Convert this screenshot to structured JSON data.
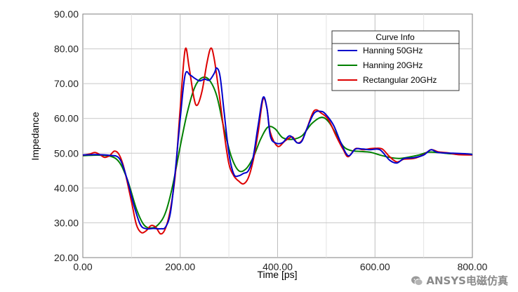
{
  "chart_data": {
    "type": "line",
    "xlabel": "Time [ps]",
    "ylabel": "Impedance",
    "xlim": [
      0,
      800
    ],
    "ylim": [
      20,
      90
    ],
    "x_ticks": [
      "0.00",
      "200.00",
      "400.00",
      "600.00",
      "800.00"
    ],
    "y_ticks": [
      "20.00",
      "30.00",
      "40.00",
      "50.00",
      "60.00",
      "70.00",
      "80.00",
      "90.00"
    ],
    "grid": true,
    "legend": {
      "title": "Curve Info",
      "placement": "top-right"
    },
    "series": [
      {
        "name": "Hanning 50GHz",
        "color": "#0000cc",
        "points": [
          [
            0,
            49.5
          ],
          [
            30,
            49.6
          ],
          [
            55,
            49.4
          ],
          [
            75,
            48.5
          ],
          [
            90,
            43
          ],
          [
            105,
            35
          ],
          [
            118,
            29.5
          ],
          [
            130,
            28.3
          ],
          [
            145,
            28.4
          ],
          [
            160,
            28.3
          ],
          [
            170,
            28.8
          ],
          [
            180,
            33
          ],
          [
            190,
            45
          ],
          [
            200,
            60
          ],
          [
            210,
            72.5
          ],
          [
            220,
            72.5
          ],
          [
            230,
            71.5
          ],
          [
            240,
            70.8
          ],
          [
            250,
            71.3
          ],
          [
            260,
            71
          ],
          [
            270,
            73
          ],
          [
            275,
            74.5
          ],
          [
            282,
            72
          ],
          [
            290,
            62
          ],
          [
            300,
            50
          ],
          [
            310,
            44
          ],
          [
            320,
            43.5
          ],
          [
            330,
            44.2
          ],
          [
            340,
            45
          ],
          [
            350,
            49
          ],
          [
            360,
            58
          ],
          [
            370,
            66
          ],
          [
            378,
            63
          ],
          [
            385,
            55
          ],
          [
            395,
            53
          ],
          [
            410,
            53
          ],
          [
            425,
            55
          ],
          [
            440,
            53
          ],
          [
            450,
            53.5
          ],
          [
            460,
            57
          ],
          [
            475,
            61.5
          ],
          [
            490,
            62
          ],
          [
            500,
            61
          ],
          [
            515,
            58
          ],
          [
            530,
            53
          ],
          [
            545,
            49.3
          ],
          [
            560,
            51.2
          ],
          [
            575,
            51.2
          ],
          [
            590,
            51
          ],
          [
            610,
            51
          ],
          [
            630,
            48
          ],
          [
            645,
            47.2
          ],
          [
            660,
            48.5
          ],
          [
            680,
            48.7
          ],
          [
            700,
            49.5
          ],
          [
            715,
            51
          ],
          [
            730,
            50.2
          ],
          [
            760,
            50
          ],
          [
            790,
            49.8
          ],
          [
            800,
            49.6
          ]
        ]
      },
      {
        "name": "Hanning 20GHz",
        "color": "#008000",
        "points": [
          [
            0,
            49.3
          ],
          [
            40,
            49.4
          ],
          [
            70,
            48.2
          ],
          [
            90,
            43
          ],
          [
            110,
            34
          ],
          [
            125,
            29.5
          ],
          [
            140,
            28.5
          ],
          [
            155,
            29.5
          ],
          [
            170,
            33
          ],
          [
            185,
            41
          ],
          [
            200,
            52
          ],
          [
            215,
            62
          ],
          [
            230,
            69
          ],
          [
            245,
            71.7
          ],
          [
            260,
            71
          ],
          [
            275,
            66.5
          ],
          [
            290,
            57
          ],
          [
            305,
            49
          ],
          [
            320,
            45
          ],
          [
            335,
            45.5
          ],
          [
            350,
            48.8
          ],
          [
            365,
            54
          ],
          [
            380,
            57.5
          ],
          [
            395,
            57
          ],
          [
            410,
            54.5
          ],
          [
            430,
            54
          ],
          [
            450,
            55
          ],
          [
            470,
            58.5
          ],
          [
            490,
            60.3
          ],
          [
            505,
            59
          ],
          [
            520,
            55.5
          ],
          [
            535,
            52
          ],
          [
            550,
            50.8
          ],
          [
            570,
            50.5
          ],
          [
            590,
            50.3
          ],
          [
            610,
            49.5
          ],
          [
            630,
            48.8
          ],
          [
            650,
            48.5
          ],
          [
            670,
            48.9
          ],
          [
            690,
            49.5
          ],
          [
            710,
            50.3
          ],
          [
            730,
            50.2
          ],
          [
            760,
            49.8
          ],
          [
            800,
            49.7
          ]
        ]
      },
      {
        "name": "Rectangular 20GHz",
        "color": "#dd0000",
        "points": [
          [
            0,
            49.4
          ],
          [
            15,
            49.8
          ],
          [
            25,
            50.2
          ],
          [
            35,
            49.6
          ],
          [
            45,
            48.8
          ],
          [
            55,
            49.3
          ],
          [
            65,
            50.6
          ],
          [
            75,
            49.5
          ],
          [
            85,
            45.5
          ],
          [
            100,
            36
          ],
          [
            110,
            29.5
          ],
          [
            120,
            27.2
          ],
          [
            130,
            27.7
          ],
          [
            140,
            29.2
          ],
          [
            150,
            28.7
          ],
          [
            160,
            26.8
          ],
          [
            170,
            28.5
          ],
          [
            180,
            34
          ],
          [
            190,
            44
          ],
          [
            200,
            63
          ],
          [
            210,
            79.7
          ],
          [
            218,
            75
          ],
          [
            228,
            66
          ],
          [
            235,
            63.8
          ],
          [
            245,
            68
          ],
          [
            255,
            76
          ],
          [
            263,
            80.2
          ],
          [
            270,
            77
          ],
          [
            280,
            67
          ],
          [
            290,
            56
          ],
          [
            300,
            47
          ],
          [
            310,
            43.5
          ],
          [
            320,
            42
          ],
          [
            330,
            41.2
          ],
          [
            340,
            43
          ],
          [
            350,
            48
          ],
          [
            360,
            56
          ],
          [
            370,
            65.5
          ],
          [
            378,
            63
          ],
          [
            385,
            56
          ],
          [
            400,
            52
          ],
          [
            415,
            53.5
          ],
          [
            430,
            54.7
          ],
          [
            440,
            53
          ],
          [
            450,
            53.7
          ],
          [
            460,
            57
          ],
          [
            475,
            62.2
          ],
          [
            490,
            61.5
          ],
          [
            505,
            59.5
          ],
          [
            520,
            55
          ],
          [
            535,
            51
          ],
          [
            545,
            49
          ],
          [
            560,
            51.3
          ],
          [
            575,
            51
          ],
          [
            590,
            51.3
          ],
          [
            600,
            51.4
          ],
          [
            615,
            51.2
          ],
          [
            630,
            49
          ],
          [
            645,
            47.5
          ],
          [
            660,
            48.3
          ],
          [
            680,
            48.5
          ],
          [
            700,
            49.6
          ],
          [
            715,
            51
          ],
          [
            730,
            50.4
          ],
          [
            750,
            50.1
          ],
          [
            770,
            49.6
          ],
          [
            800,
            49.5
          ]
        ]
      }
    ]
  },
  "watermark": {
    "text": "ANSYS电磁仿真",
    "icon": "wechat-icon"
  }
}
